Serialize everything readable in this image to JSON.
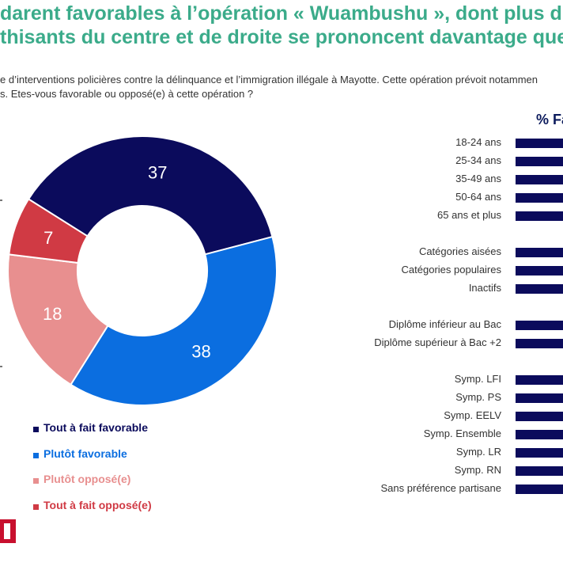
{
  "title": {
    "line1": "darent favorables à l’opération « Wuambushu », dont plus d’un tie",
    "line2": "thisants du centre et de droite se prononcent davantage que la m"
  },
  "question": {
    "line1": "e d’interventions policières contre la délinquance et l’immigration illégale à Mayotte. Cette opération prévoit notammen",
    "line2": "s. Etes-vous favorable ou opposé(e) à cette opération ?"
  },
  "right_header": "% Fa",
  "colors": {
    "tout_favorable": "#0b0b5c",
    "plutot_favorable": "#0b6ee0",
    "plutot_oppose": "#e88f8f",
    "tout_oppose": "#d03a44"
  },
  "chart_data": [
    {
      "type": "pie",
      "donut": true,
      "series": [
        {
          "name": "Tout à fait favorable",
          "value": 37,
          "color": "#0b0b5c",
          "label_color": "#ffffff"
        },
        {
          "name": "Plutôt favorable",
          "value": 38,
          "color": "#0b6ee0",
          "label_color": "#ffffff"
        },
        {
          "name": "Plutôt opposé(e)",
          "value": 18,
          "color": "#e88f8f",
          "label_color": "#ffffff"
        },
        {
          "name": "Tout à fait opposé(e)",
          "value": 7,
          "color": "#d03a44",
          "label_color": "#ffffff"
        }
      ],
      "legend_placement": "bottom-left"
    },
    {
      "type": "bar",
      "orientation": "horizontal",
      "title": "% Fa",
      "groups": [
        {
          "categories": [
            "18-24 ans",
            "25-34 ans",
            "35-49 ans",
            "50-64 ans",
            "65 ans et plus"
          ]
        },
        {
          "categories": [
            "Catégories aisées",
            "Catégories populaires",
            "Inactifs"
          ]
        },
        {
          "categories": [
            "Diplôme inférieur au Bac",
            "Diplôme supérieur à Bac +2"
          ]
        },
        {
          "categories": [
            "Symp. LFI",
            "Symp. PS",
            "Symp. EELV",
            "Symp. Ensemble",
            "Symp. LR",
            "Symp. RN",
            "Sans préférence partisane"
          ]
        }
      ],
      "bar_color": "#0b0b5c"
    }
  ]
}
